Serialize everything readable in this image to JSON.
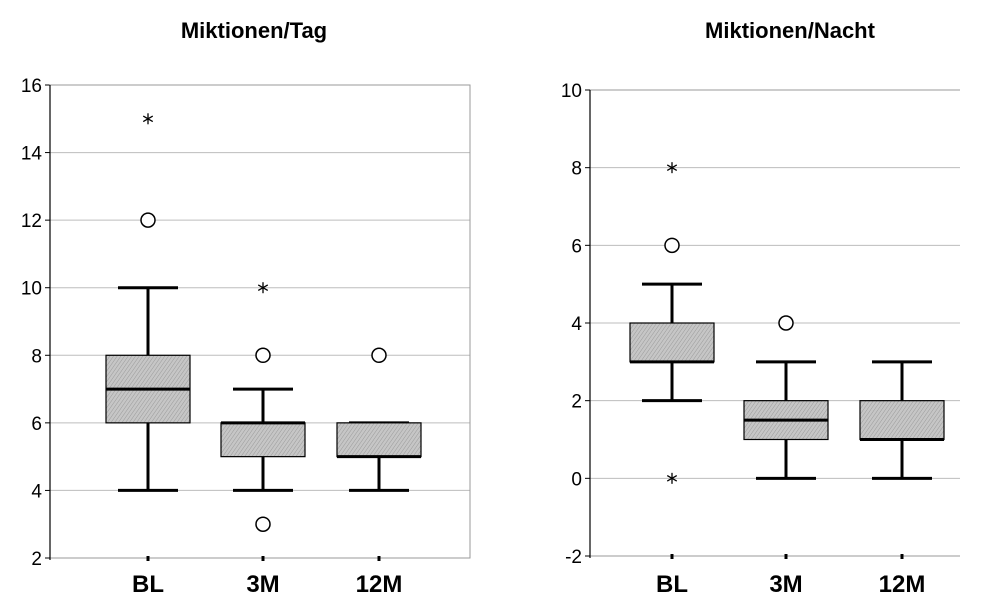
{
  "chart_data": [
    {
      "type": "boxplot",
      "title": "Miktionen/Tag",
      "categories": [
        "BL",
        "3M",
        "12M"
      ],
      "ylim": [
        2,
        16
      ],
      "yticks": [
        2,
        4,
        6,
        8,
        10,
        12,
        14,
        16
      ],
      "grid": true,
      "boxes": [
        {
          "whisker_low": 4,
          "q1": 6,
          "median": 7,
          "q3": 8,
          "whisker_high": 10,
          "outliers": [
            12
          ],
          "extremes": [
            15
          ]
        },
        {
          "whisker_low": 4,
          "q1": 5,
          "median": 6,
          "q3": 6,
          "whisker_high": 7,
          "outliers": [
            3,
            8
          ],
          "extremes": [
            10
          ]
        },
        {
          "whisker_low": 4,
          "q1": 5,
          "median": 5,
          "q3": 6,
          "whisker_high": 6,
          "outliers": [
            8
          ],
          "extremes": []
        }
      ]
    },
    {
      "type": "boxplot",
      "title": "Miktionen/Nacht",
      "categories": [
        "BL",
        "3M",
        "12M"
      ],
      "ylim": [
        -2,
        10
      ],
      "yticks": [
        -2,
        0,
        2,
        4,
        6,
        8,
        10
      ],
      "grid": true,
      "boxes": [
        {
          "whisker_low": 2,
          "q1": 3,
          "median": 3,
          "q3": 4,
          "whisker_high": 5,
          "outliers": [
            6
          ],
          "extremes": [
            0,
            8
          ]
        },
        {
          "whisker_low": 0,
          "q1": 1,
          "median": 1.5,
          "q3": 2,
          "whisker_high": 3,
          "outliers": [
            4
          ],
          "extremes": []
        },
        {
          "whisker_low": 0,
          "q1": 1,
          "median": 1,
          "q3": 2,
          "whisker_high": 3,
          "outliers": [],
          "extremes": []
        }
      ]
    }
  ]
}
